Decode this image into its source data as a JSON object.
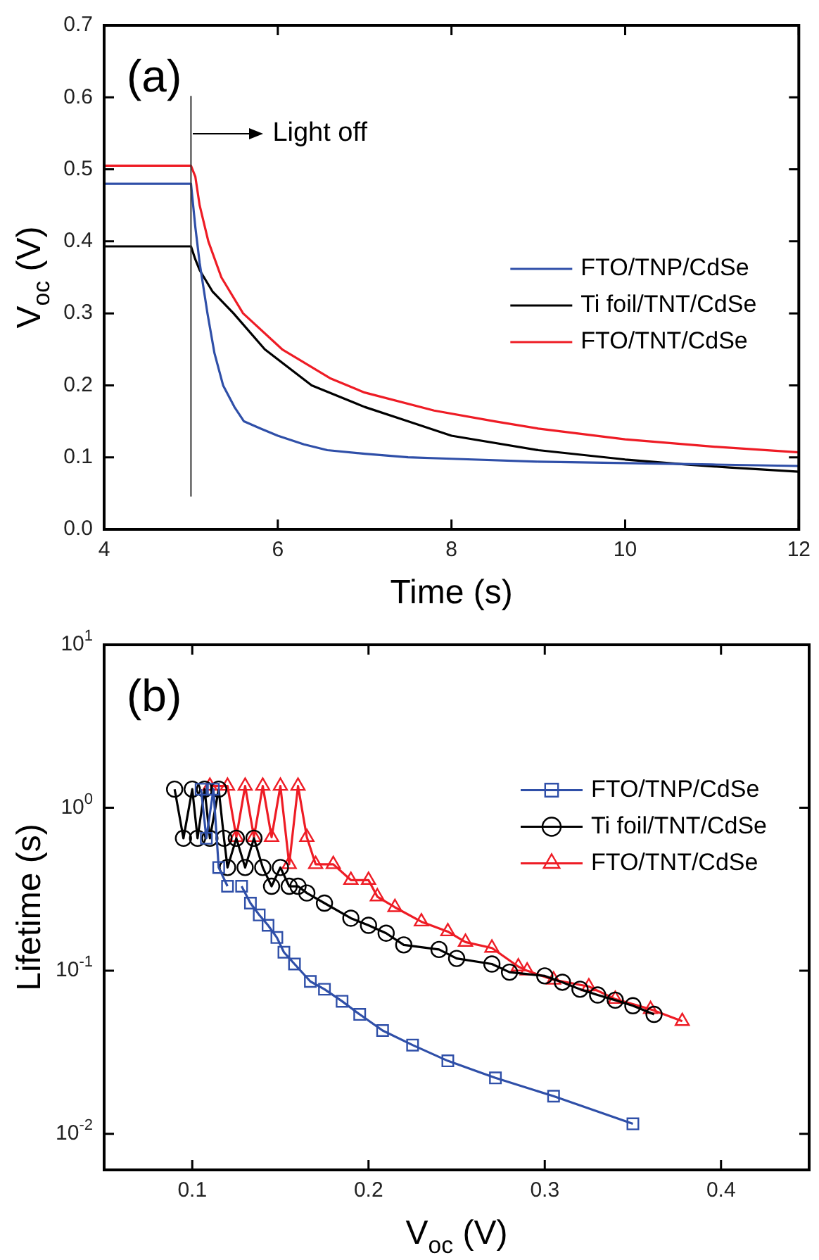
{
  "chart_data": [
    {
      "type": "line",
      "xlabel": "Time (s)",
      "ylabel": "V$_{oc}$ (V)",
      "xlim": [
        4,
        12
      ],
      "ylim": [
        0,
        0.7
      ],
      "xticks": [
        4,
        6,
        8,
        10,
        12
      ],
      "yticks": [
        {
          "value": 0,
          "label": "0.0"
        },
        0.1,
        0.2,
        0.3,
        0.4,
        0.5,
        0.6,
        0.7
      ],
      "legend": "right",
      "annotations": [
        "(a)"
      ],
      "ref_lines": [
        {
          "axis": "x",
          "value": 5,
          "label": "Light off"
        }
      ],
      "series": [
        {
          "name": "FTO/TNP/CdSe",
          "color": "#2f4fa8",
          "x": [
            4,
            5,
            5.05,
            5.1,
            5.19,
            5.27,
            5.37,
            5.5,
            5.61,
            5.8,
            6,
            6.3,
            6.57,
            7,
            7.5,
            8,
            9,
            10,
            11,
            12
          ],
          "values": [
            0.48,
            0.48,
            0.42,
            0.37,
            0.3,
            0.245,
            0.2,
            0.17,
            0.15,
            0.14,
            0.13,
            0.118,
            0.11,
            0.105,
            0.1,
            0.098,
            0.094,
            0.092,
            0.09,
            0.088
          ]
        },
        {
          "name": "Ti foil/TNT/CdSe",
          "color": "#000000",
          "x": [
            4,
            5,
            5.05,
            5.1,
            5.25,
            5.49,
            5.85,
            6.39,
            7,
            7.5,
            8,
            9,
            10,
            10.7,
            11.2,
            12
          ],
          "values": [
            0.393,
            0.393,
            0.375,
            0.36,
            0.33,
            0.3,
            0.25,
            0.2,
            0.17,
            0.15,
            0.13,
            0.11,
            0.097,
            0.09,
            0.086,
            0.08
          ]
        },
        {
          "name": "FTO/TNT/CdSe",
          "color": "#ee1c25",
          "x": [
            4,
            5,
            5.05,
            5.1,
            5.2,
            5.35,
            5.6,
            6.05,
            6.6,
            7,
            7.8,
            8.5,
            9,
            10,
            11,
            12
          ],
          "values": [
            0.505,
            0.505,
            0.49,
            0.45,
            0.4,
            0.35,
            0.3,
            0.25,
            0.21,
            0.19,
            0.165,
            0.15,
            0.14,
            0.125,
            0.115,
            0.107
          ]
        }
      ]
    },
    {
      "type": "line",
      "xlabel": "V$_{oc}$ (V)",
      "ylabel": "Lifetime (s)",
      "log": "y",
      "xlim": [
        0.05,
        0.45
      ],
      "ylim": [
        0.006,
        10
      ],
      "xticks": [
        0.1,
        0.2,
        0.3,
        0.4
      ],
      "yticks": [
        {
          "value": 0.01,
          "label": "10$^{-2}$"
        },
        {
          "value": 0.1,
          "label": "10$^{-1}$"
        },
        {
          "value": 1,
          "label": "10$^{0}$"
        },
        {
          "value": 10,
          "label": "10$^{1}$"
        }
      ],
      "legend": "top right",
      "annotations": [
        "(b)"
      ],
      "series": [
        {
          "name": "FTO/TNP/CdSe",
          "color": "#2f4fa8",
          "marker": "square",
          "x": [
            0.105,
            0.108,
            0.112,
            0.115,
            0.12,
            0.124,
            0.128,
            0.133,
            0.138,
            0.143,
            0.148,
            0.152,
            0.158,
            0.167,
            0.175,
            0.185,
            0.195,
            0.208,
            0.225,
            0.245,
            0.272,
            0.305,
            0.35
          ],
          "values": [
            1.3,
            0.65,
            1.3,
            0.43,
            0.33,
            null,
            0.33,
            0.26,
            0.22,
            0.19,
            0.16,
            0.13,
            0.11,
            0.086,
            0.077,
            0.065,
            0.054,
            0.043,
            0.035,
            0.028,
            0.022,
            0.017,
            0.0115
          ]
        },
        {
          "name": "Ti foil/TNT/CdSe",
          "color": "#000000",
          "marker": "circle",
          "x": [
            0.09,
            0.095,
            0.1,
            0.103,
            0.107,
            0.11,
            0.115,
            0.118,
            0.12,
            0.125,
            0.13,
            0.135,
            0.14,
            0.145,
            0.15,
            0.155,
            0.16,
            0.165,
            0.175,
            0.19,
            0.2,
            0.21,
            0.22,
            0.24,
            0.25,
            0.27,
            0.28,
            0.3,
            0.31,
            0.32,
            0.33,
            0.34,
            0.35,
            0.362
          ],
          "values": [
            1.3,
            0.65,
            1.3,
            0.65,
            1.3,
            0.65,
            1.3,
            0.65,
            0.43,
            0.65,
            0.43,
            0.65,
            0.43,
            0.33,
            0.43,
            0.33,
            0.33,
            0.3,
            0.26,
            0.21,
            0.19,
            0.17,
            0.144,
            0.135,
            0.119,
            0.11,
            0.098,
            0.093,
            0.085,
            0.077,
            0.071,
            0.066,
            0.061,
            0.054
          ]
        },
        {
          "name": "FTO/TNT/CdSe",
          "color": "#ee1c25",
          "marker": "triangle",
          "x": [
            0.11,
            0.12,
            0.125,
            0.13,
            0.135,
            0.14,
            0.145,
            0.15,
            0.155,
            0.16,
            0.165,
            0.17,
            0.18,
            0.19,
            0.2,
            0.205,
            0.215,
            0.23,
            0.245,
            0.255,
            0.27,
            0.285,
            0.29,
            0.305,
            0.325,
            0.34,
            0.36,
            0.378
          ],
          "values": [
            1.36,
            1.36,
            0.66,
            1.36,
            0.66,
            1.36,
            0.66,
            1.36,
            0.45,
            1.36,
            0.66,
            0.45,
            0.45,
            0.36,
            0.36,
            0.285,
            0.245,
            0.2,
            0.174,
            0.15,
            0.138,
            0.106,
            0.1,
            0.088,
            0.08,
            0.067,
            0.058,
            0.049
          ]
        }
      ]
    }
  ]
}
